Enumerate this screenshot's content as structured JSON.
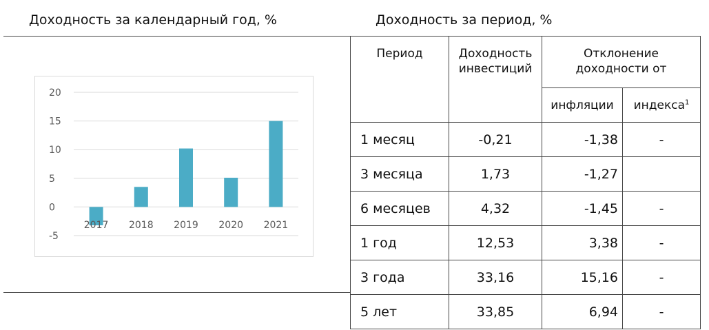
{
  "left_title": "Доходность за календарный год, %",
  "right_title": "Доходность за период, %",
  "chart_data": {
    "type": "bar",
    "categories": [
      "2017",
      "2018",
      "2019",
      "2020",
      "2021"
    ],
    "values": [
      -3.2,
      3.5,
      10.2,
      5.1,
      15.0
    ],
    "ylim": [
      -5,
      20
    ],
    "yticks": [
      "20",
      "15",
      "10",
      "5",
      "0",
      "-5"
    ],
    "grid": true,
    "color": "#4bacc6"
  },
  "table": {
    "headers": {
      "period": "Период",
      "return": "Доходность инвестиций",
      "deviation": "Отклонение доходности от",
      "inflation": "инфляции",
      "index": "индекса",
      "index_sup": "1"
    },
    "rows": [
      {
        "period": "1 месяц",
        "return": "-0,21",
        "inflation": "-1,38",
        "index": "-"
      },
      {
        "period": "3 месяца",
        "return": "1,73",
        "inflation": "-1,27",
        "index": ""
      },
      {
        "period": "6 месяцев",
        "return": "4,32",
        "inflation": "-1,45",
        "index": "-"
      },
      {
        "period": "1 год",
        "return": "12,53",
        "inflation": "3,38",
        "index": "-"
      },
      {
        "period": "3 года",
        "return": "33,16",
        "inflation": "15,16",
        "index": "-"
      },
      {
        "period": "5 лет",
        "return": "33,85",
        "inflation": "6,94",
        "index": "-"
      }
    ]
  }
}
